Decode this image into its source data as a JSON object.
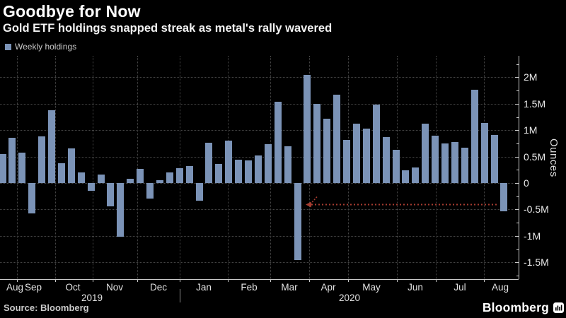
{
  "header": {
    "title": "Goodbye for Now",
    "subtitle": "Gold ETF holdings snapped streak as metal's rally wavered"
  },
  "legend": {
    "label": "Weekly holdings",
    "swatch_color": "#7b93b7"
  },
  "footer": {
    "source": "Source: Bloomberg",
    "brand": "Bloomberg"
  },
  "chart_data": {
    "type": "bar",
    "title": "Goodbye for Now",
    "subtitle": "Gold ETF holdings snapped streak as metal's rally wavered",
    "ylabel": "Ounces",
    "unit": "ounces, millions (weekly change in gold ETF holdings)",
    "ylim": [
      -1.82,
      2.4
    ],
    "grid": true,
    "legend_position": "top-left",
    "bar_color": "#7b93b7",
    "y_ticks": [
      {
        "v": 2.0,
        "label": "2M"
      },
      {
        "v": 1.5,
        "label": "1.5M"
      },
      {
        "v": 1.0,
        "label": "1M"
      },
      {
        "v": 0.5,
        "label": "0.5M"
      },
      {
        "v": 0.0,
        "label": "0"
      },
      {
        "v": -0.5,
        "label": "-0.5M"
      },
      {
        "v": -1.0,
        "label": "-1M"
      },
      {
        "v": -1.5,
        "label": "-1.5M"
      }
    ],
    "x_months": [
      "Aug",
      "Sep",
      "Oct",
      "Nov",
      "Dec",
      "Jan",
      "Feb",
      "Mar",
      "Apr",
      "May",
      "Jun",
      "Jul",
      "Aug"
    ],
    "years": [
      "2019",
      "2020"
    ],
    "series": [
      {
        "name": "Weekly holdings",
        "values": [
          0.55,
          0.86,
          0.57,
          -0.58,
          0.88,
          1.38,
          0.38,
          0.66,
          0.2,
          -0.15,
          0.16,
          -0.44,
          -1.02,
          0.08,
          0.27,
          -0.3,
          0.06,
          0.2,
          0.28,
          0.32,
          -0.34,
          0.76,
          0.36,
          0.8,
          0.44,
          0.43,
          0.52,
          0.73,
          1.54,
          0.69,
          -1.46,
          2.05,
          1.5,
          1.22,
          1.67,
          0.81,
          1.12,
          1.03,
          1.49,
          0.87,
          0.63,
          0.24,
          0.3,
          1.12,
          0.89,
          0.75,
          0.77,
          0.67,
          1.76,
          1.14,
          0.91,
          -0.53
        ]
      }
    ],
    "annotation": {
      "type": "dashed-arrow",
      "color": "#a63c30",
      "y_value": -0.41,
      "direction": "left",
      "description": "dashed red arrow from the final negative week back to the March outflow"
    }
  }
}
